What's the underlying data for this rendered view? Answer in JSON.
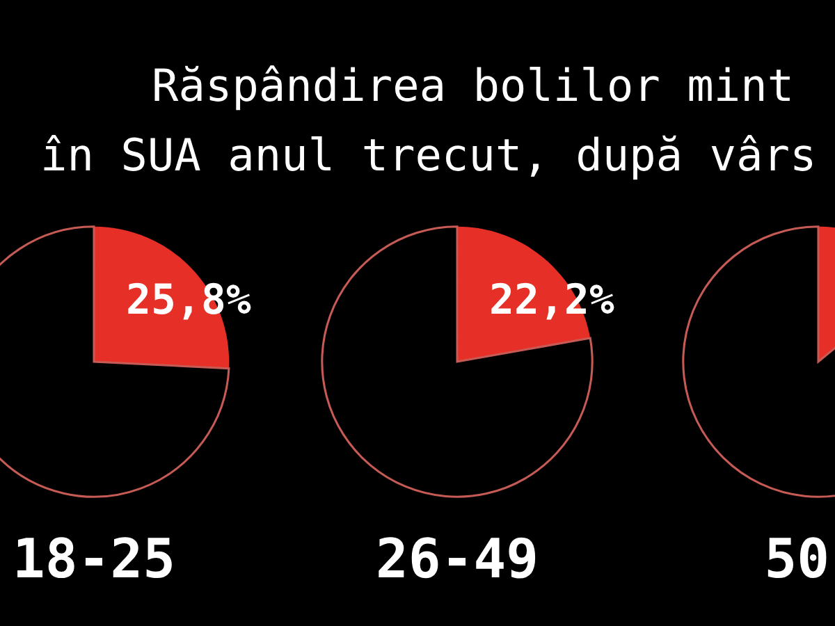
{
  "chart_data": [
    {
      "type": "other",
      "title": "Răspândirea bolilor mint",
      "subtitle": "în SUA anul trecut, după vârs"
    },
    {
      "type": "pie",
      "categories": [
        null,
        null
      ],
      "values": [
        25.8,
        74.2
      ],
      "colors": [
        "#e63027",
        "#000000"
      ],
      "value_labels": [
        "25,8%",
        null
      ],
      "xlabel": "18-25"
    },
    {
      "type": "pie",
      "categories": [
        null,
        null
      ],
      "values": [
        22.2,
        77.8
      ],
      "colors": [
        "#e63027",
        "#000000"
      ],
      "value_labels": [
        "22,2%",
        null
      ],
      "xlabel": "26-49"
    },
    {
      "type": "pie",
      "categories": [
        null,
        null
      ],
      "values": [
        14,
        86
      ],
      "colors": [
        "#e63027",
        "#000000"
      ],
      "xlabel": "50"
    }
  ]
}
